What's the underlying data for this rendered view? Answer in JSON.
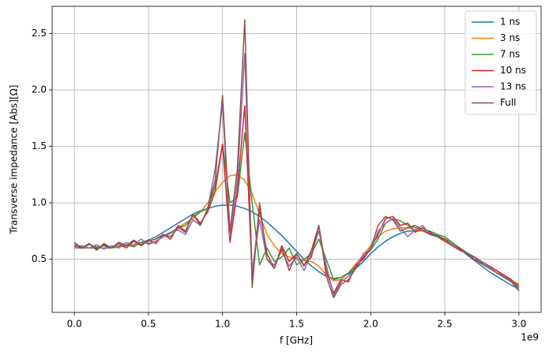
{
  "chart_data": {
    "type": "line",
    "xlabel": "f [GHz]",
    "x_offset_label": "1e9",
    "ylabel": "Transverse impedance [Abs][Ω]",
    "x": [
      0,
      0.05,
      0.1,
      0.15,
      0.2,
      0.25,
      0.3,
      0.35,
      0.4,
      0.45,
      0.5,
      0.55,
      0.6,
      0.65,
      0.7,
      0.75,
      0.8,
      0.85,
      0.9,
      0.95,
      1.0,
      1.05,
      1.1,
      1.15,
      1.2,
      1.25,
      1.3,
      1.35,
      1.4,
      1.45,
      1.5,
      1.55,
      1.6,
      1.65,
      1.7,
      1.75,
      1.8,
      1.85,
      1.9,
      1.95,
      2.0,
      2.05,
      2.1,
      2.15,
      2.2,
      2.25,
      2.3,
      2.35,
      2.4,
      2.45,
      2.5,
      2.55,
      2.6,
      2.65,
      2.7,
      2.75,
      2.8,
      2.85,
      2.9,
      2.95,
      3.0
    ],
    "series": [
      {
        "name": "1 ns",
        "color": "#1f77b4",
        "values": [
          0.6,
          0.6,
          0.6,
          0.6,
          0.6,
          0.6,
          0.61,
          0.62,
          0.63,
          0.65,
          0.67,
          0.7,
          0.74,
          0.78,
          0.82,
          0.86,
          0.9,
          0.93,
          0.95,
          0.97,
          0.98,
          0.98,
          0.97,
          0.95,
          0.92,
          0.88,
          0.83,
          0.77,
          0.71,
          0.64,
          0.57,
          0.5,
          0.44,
          0.39,
          0.35,
          0.33,
          0.34,
          0.37,
          0.42,
          0.48,
          0.55,
          0.61,
          0.66,
          0.7,
          0.73,
          0.75,
          0.75,
          0.75,
          0.73,
          0.71,
          0.68,
          0.64,
          0.59,
          0.54,
          0.49,
          0.44,
          0.39,
          0.35,
          0.31,
          0.27,
          0.24
        ]
      },
      {
        "name": "3 ns",
        "color": "#ff7f0e",
        "values": [
          0.6,
          0.61,
          0.6,
          0.61,
          0.6,
          0.62,
          0.61,
          0.63,
          0.63,
          0.65,
          0.66,
          0.68,
          0.71,
          0.74,
          0.78,
          0.82,
          0.86,
          0.92,
          1.0,
          1.1,
          1.18,
          1.24,
          1.25,
          1.2,
          1.08,
          0.9,
          0.72,
          0.62,
          0.55,
          0.52,
          0.5,
          0.49,
          0.48,
          0.44,
          0.36,
          0.31,
          0.32,
          0.38,
          0.46,
          0.54,
          0.62,
          0.7,
          0.75,
          0.77,
          0.78,
          0.78,
          0.76,
          0.75,
          0.72,
          0.7,
          0.67,
          0.64,
          0.6,
          0.56,
          0.52,
          0.48,
          0.44,
          0.4,
          0.35,
          0.31,
          0.28
        ]
      },
      {
        "name": "7 ns",
        "color": "#2ca02c",
        "values": [
          0.63,
          0.6,
          0.63,
          0.61,
          0.62,
          0.6,
          0.62,
          0.63,
          0.61,
          0.65,
          0.64,
          0.66,
          0.7,
          0.73,
          0.78,
          0.8,
          0.88,
          0.92,
          0.95,
          1.15,
          1.52,
          1.0,
          1.05,
          1.62,
          1.0,
          0.45,
          0.6,
          0.48,
          0.52,
          0.6,
          0.45,
          0.5,
          0.55,
          0.68,
          0.5,
          0.32,
          0.34,
          0.38,
          0.44,
          0.52,
          0.58,
          0.68,
          0.82,
          0.86,
          0.84,
          0.8,
          0.78,
          0.76,
          0.75,
          0.72,
          0.7,
          0.65,
          0.6,
          0.56,
          0.52,
          0.48,
          0.44,
          0.4,
          0.35,
          0.31,
          0.27
        ]
      },
      {
        "name": "10 ns",
        "color": "#d62728",
        "values": [
          0.62,
          0.6,
          0.64,
          0.59,
          0.63,
          0.6,
          0.64,
          0.6,
          0.66,
          0.62,
          0.67,
          0.64,
          0.72,
          0.68,
          0.8,
          0.75,
          0.9,
          0.82,
          0.92,
          1.1,
          1.52,
          0.65,
          1.1,
          1.86,
          0.35,
          0.95,
          0.55,
          0.42,
          0.62,
          0.48,
          0.55,
          0.44,
          0.58,
          0.8,
          0.4,
          0.2,
          0.32,
          0.3,
          0.45,
          0.5,
          0.6,
          0.72,
          0.86,
          0.88,
          0.8,
          0.82,
          0.74,
          0.78,
          0.74,
          0.7,
          0.68,
          0.62,
          0.6,
          0.55,
          0.52,
          0.47,
          0.44,
          0.4,
          0.36,
          0.32,
          0.25
        ]
      },
      {
        "name": "13 ns",
        "color": "#9467bd",
        "values": [
          0.61,
          0.62,
          0.6,
          0.63,
          0.59,
          0.62,
          0.6,
          0.65,
          0.62,
          0.68,
          0.63,
          0.66,
          0.7,
          0.74,
          0.76,
          0.72,
          0.85,
          0.8,
          0.95,
          1.3,
          1.88,
          0.7,
          1.2,
          2.32,
          0.4,
          0.85,
          0.5,
          0.45,
          0.58,
          0.44,
          0.52,
          0.4,
          0.55,
          0.75,
          0.45,
          0.18,
          0.3,
          0.35,
          0.42,
          0.55,
          0.58,
          0.75,
          0.82,
          0.86,
          0.78,
          0.7,
          0.76,
          0.8,
          0.72,
          0.7,
          0.66,
          0.63,
          0.58,
          0.56,
          0.5,
          0.48,
          0.43,
          0.38,
          0.35,
          0.3,
          0.24
        ]
      },
      {
        "name": "Full",
        "color": "#8c564b",
        "values": [
          0.65,
          0.6,
          0.64,
          0.58,
          0.64,
          0.6,
          0.65,
          0.62,
          0.67,
          0.63,
          0.66,
          0.68,
          0.72,
          0.7,
          0.78,
          0.74,
          0.9,
          0.8,
          0.95,
          1.2,
          1.95,
          0.75,
          1.3,
          2.62,
          0.25,
          1.0,
          0.5,
          0.42,
          0.6,
          0.4,
          0.55,
          0.45,
          0.52,
          0.8,
          0.35,
          0.16,
          0.28,
          0.32,
          0.42,
          0.52,
          0.6,
          0.8,
          0.88,
          0.85,
          0.75,
          0.78,
          0.8,
          0.76,
          0.72,
          0.7,
          0.66,
          0.62,
          0.58,
          0.55,
          0.5,
          0.46,
          0.42,
          0.38,
          0.34,
          0.3,
          0.22
        ]
      }
    ],
    "xlim": [
      -0.15,
      3.15
    ],
    "xticks": [
      {
        "value": 0,
        "label": "0.0"
      },
      0.5,
      {
        "value": 1,
        "label": "1.0"
      },
      1.5,
      {
        "value": 2,
        "label": "2.0"
      },
      2.5,
      {
        "value": 3,
        "label": "3.0"
      }
    ],
    "ylim": [
      0.03,
      2.74
    ],
    "yticks": [
      0.5,
      {
        "value": 1,
        "label": "1.0"
      },
      1.5,
      {
        "value": 2,
        "label": "2.0"
      },
      2.5
    ],
    "grid": true,
    "legend": "upper right"
  }
}
